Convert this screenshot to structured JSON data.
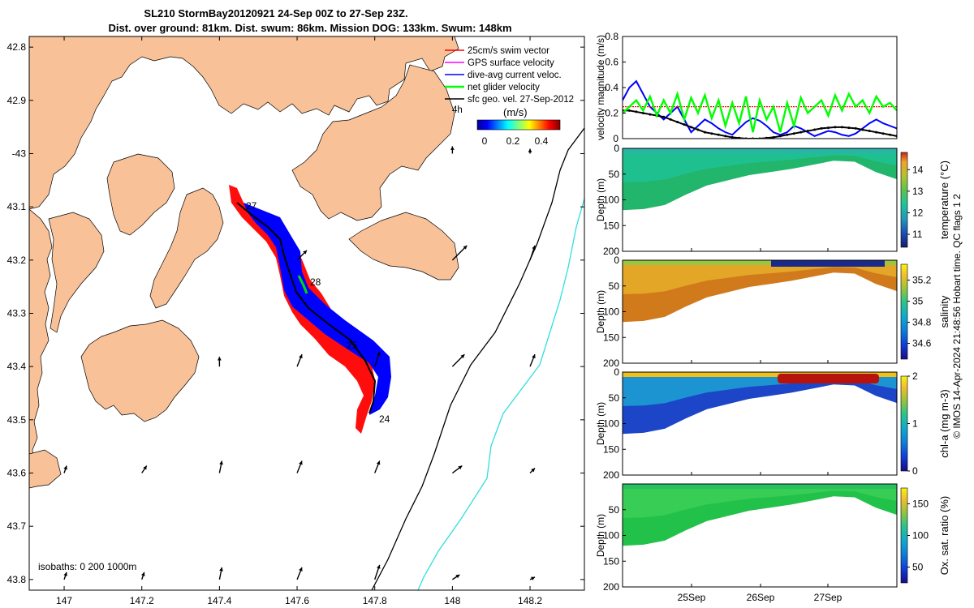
{
  "chart_data": [
    {
      "type": "map",
      "title_line1": "SL210 StormBay20120921 24-Sep 00Z to 27-Sep 23Z.",
      "title_line2": "Dist. over ground: 81km. Dist. swum: 86km. Mission DOG: 133km. Swum: 148km",
      "lon_ticks": [
        "147",
        "147.2",
        "147.4",
        "147.6",
        "147.8",
        "148",
        "148.2"
      ],
      "lat_ticks": [
        "42.8",
        "42.9",
        "-43",
        "43.1",
        "43.2",
        "43.3",
        "43.4",
        "43.5",
        "43.6",
        "43.7",
        "43.8"
      ],
      "xlim": [
        146.91,
        148.34
      ],
      "ylim": [
        -43.82,
        -42.78
      ],
      "legend": [
        {
          "label": "25cm/s swim vector",
          "color": "#ff0000"
        },
        {
          "label": "GPS surface velocity",
          "color": "#ff00ff"
        },
        {
          "label": "dive-avg current veloc.",
          "color": "#0000ff"
        },
        {
          "label": "net glider velocity",
          "color": "#00ff00"
        },
        {
          "label": "sfc geo. vel. 27-Sep-2012",
          "color": "#000000"
        }
      ],
      "legend_extra": "4h",
      "colorbar": {
        "unit_label": "(m/s)",
        "ticks": [
          "0",
          "0.2",
          "0.4"
        ],
        "range": [
          0,
          0.45
        ]
      },
      "isobath_label": "isobaths: 0   200  1000m",
      "isobath_colors": {
        "200m": "#000000",
        "1000m": "#33dddd"
      },
      "land_color": "#f8c197",
      "track_day_labels": [
        "27",
        "28",
        "25",
        "24"
      ],
      "glider_track": [
        [
          147.46,
          -43.115
        ],
        [
          147.49,
          -43.13
        ],
        [
          147.52,
          -43.15
        ],
        [
          147.555,
          -43.175
        ],
        [
          147.57,
          -43.215
        ],
        [
          147.58,
          -43.26
        ],
        [
          147.6,
          -43.3
        ],
        [
          147.66,
          -43.34
        ],
        [
          147.74,
          -43.38
        ],
        [
          147.78,
          -43.41
        ],
        [
          147.8,
          -43.45
        ],
        [
          147.79,
          -43.485
        ],
        [
          147.77,
          -43.5
        ]
      ],
      "current_arrows": [
        {
          "lon": 147.6,
          "lat": -43.2,
          "u": 0.2,
          "v": 0.2
        },
        {
          "lon": 148.0,
          "lat": -43.2,
          "u": 0.3,
          "v": 0.3
        },
        {
          "lon": 148.2,
          "lat": -43.2,
          "u": 0.1,
          "v": 0.3
        },
        {
          "lon": 147.4,
          "lat": -43.4,
          "u": 0.0,
          "v": 0.2
        },
        {
          "lon": 147.6,
          "lat": -43.4,
          "u": 0.1,
          "v": 0.25
        },
        {
          "lon": 147.8,
          "lat": -43.4,
          "u": 0.1,
          "v": 0.3
        },
        {
          "lon": 148.0,
          "lat": -43.4,
          "u": 0.25,
          "v": 0.25
        },
        {
          "lon": 148.2,
          "lat": -43.4,
          "u": 0.1,
          "v": 0.25
        },
        {
          "lon": 147.0,
          "lat": -43.6,
          "u": 0.05,
          "v": 0.15
        },
        {
          "lon": 147.2,
          "lat": -43.6,
          "u": 0.1,
          "v": 0.15
        },
        {
          "lon": 147.4,
          "lat": -43.6,
          "u": 0.05,
          "v": 0.25
        },
        {
          "lon": 147.6,
          "lat": -43.6,
          "u": 0.1,
          "v": 0.25
        },
        {
          "lon": 147.8,
          "lat": -43.6,
          "u": 0.1,
          "v": 0.25
        },
        {
          "lon": 148.0,
          "lat": -43.6,
          "u": 0.2,
          "v": 0.15
        },
        {
          "lon": 148.2,
          "lat": -43.6,
          "u": 0.1,
          "v": 0.1
        },
        {
          "lon": 147.0,
          "lat": -43.8,
          "u": 0.05,
          "v": 0.15
        },
        {
          "lon": 147.2,
          "lat": -43.8,
          "u": 0.05,
          "v": 0.15
        },
        {
          "lon": 147.4,
          "lat": -43.8,
          "u": 0.05,
          "v": 0.25
        },
        {
          "lon": 147.6,
          "lat": -43.8,
          "u": 0.1,
          "v": 0.25
        },
        {
          "lon": 147.8,
          "lat": -43.8,
          "u": 0.1,
          "v": 0.3
        },
        {
          "lon": 148.0,
          "lat": -43.8,
          "u": 0.15,
          "v": 0.1
        },
        {
          "lon": 148.2,
          "lat": -43.8,
          "u": 0.1,
          "v": 0.05
        },
        {
          "lon": 148.0,
          "lat": -43.0,
          "u": 0.0,
          "v": 0.15
        },
        {
          "lon": 148.2,
          "lat": -43.0,
          "u": 0.0,
          "v": 0.1
        }
      ]
    },
    {
      "type": "line",
      "ylabel": "velocity magnitude (m/s)",
      "ylim": [
        0,
        0.8
      ],
      "yticks": [
        "0",
        "0.2",
        "0.4",
        "0.6",
        "0.8"
      ],
      "x": [
        0,
        0.1,
        0.2,
        0.3,
        0.4,
        0.5,
        0.6,
        0.7,
        0.8,
        0.9,
        1.0,
        1.1,
        1.2,
        1.3,
        1.4,
        1.5,
        1.6,
        1.7,
        1.8,
        1.9,
        2.0,
        2.1,
        2.2,
        2.3,
        2.4,
        2.5,
        2.6,
        2.7,
        2.8,
        2.9,
        3.0,
        3.1,
        3.2,
        3.3,
        3.4,
        3.5,
        3.6,
        3.7,
        3.8,
        3.9,
        4.0
      ],
      "series": [
        {
          "name": "dive-avg current veloc.",
          "color": "#0000ff",
          "values": [
            0.3,
            0.4,
            0.45,
            0.35,
            0.25,
            0.2,
            0.15,
            0.2,
            0.25,
            0.15,
            0.05,
            0.1,
            0.15,
            0.12,
            0.08,
            0.05,
            0.03,
            0.08,
            0.13,
            0.16,
            0.14,
            0.1,
            0.05,
            0.03,
            0.05,
            0.1,
            0.08,
            0.05,
            0.02,
            0.04,
            0.06,
            0.05,
            0.03,
            0.02,
            0.04,
            0.08,
            0.12,
            0.15,
            0.12,
            0.1,
            0.08
          ]
        },
        {
          "name": "25cm/s swim vector",
          "color": "#ff0000",
          "values": [
            0.25,
            0.25,
            0.25,
            0.25,
            0.25,
            0.25,
            0.25,
            0.25,
            0.25,
            0.25,
            0.25,
            0.25,
            0.25,
            0.25,
            0.25,
            0.25,
            0.25,
            0.25,
            0.25,
            0.25,
            0.25,
            0.25,
            0.25,
            0.25,
            0.25,
            0.25,
            0.25,
            0.25,
            0.25,
            0.25,
            0.25,
            0.25,
            0.25,
            0.25,
            0.25,
            0.25,
            0.25,
            0.25,
            0.25,
            0.25,
            0.25
          ]
        },
        {
          "name": "sfc geo. vel.",
          "color": "#000000",
          "values": [
            0.22,
            0.22,
            0.21,
            0.2,
            0.19,
            0.18,
            0.17,
            0.15,
            0.13,
            0.11,
            0.09,
            0.07,
            0.05,
            0.04,
            0.03,
            0.02,
            0.01,
            0.005,
            0.0,
            0.0,
            0.0,
            0.005,
            0.01,
            0.02,
            0.03,
            0.04,
            0.05,
            0.06,
            0.07,
            0.08,
            0.085,
            0.09,
            0.09,
            0.085,
            0.08,
            0.07,
            0.06,
            0.05,
            0.04,
            0.03,
            0.02
          ]
        },
        {
          "name": "net glider velocity",
          "color": "#00ff00",
          "values": [
            0.2,
            0.25,
            0.3,
            0.22,
            0.33,
            0.18,
            0.3,
            0.2,
            0.35,
            0.15,
            0.32,
            0.2,
            0.34,
            0.16,
            0.3,
            0.1,
            0.28,
            0.12,
            0.33,
            0.05,
            0.3,
            0.15,
            0.25,
            0.05,
            0.28,
            0.1,
            0.32,
            0.2,
            0.25,
            0.3,
            0.18,
            0.34,
            0.22,
            0.35,
            0.25,
            0.3,
            0.2,
            0.33,
            0.25,
            0.28,
            0.22
          ]
        }
      ]
    },
    {
      "type": "heatmap",
      "ylabel": "Depth (m)",
      "cblabel": "temperature (°C)",
      "ylim": [
        0,
        200
      ],
      "yticks": [
        "0",
        "50",
        "100",
        "150",
        "200"
      ],
      "cbticks": [
        "11",
        "12",
        "13",
        "14"
      ],
      "cbrange": [
        10.4,
        14.8
      ]
    },
    {
      "type": "heatmap",
      "ylabel": "Depth (m)",
      "cblabel": "salinity",
      "ylim": [
        0,
        200
      ],
      "yticks": [
        "0",
        "50",
        "100",
        "150",
        "200"
      ],
      "cbticks": [
        "34.6",
        "34.8",
        "35",
        "35.2"
      ],
      "cbrange": [
        34.45,
        35.35
      ]
    },
    {
      "type": "heatmap",
      "ylabel": "Depth (m)",
      "cblabel": "chl-a (mg m-3)",
      "ylim": [
        0,
        200
      ],
      "yticks": [
        "0",
        "50",
        "100",
        "150",
        "200"
      ],
      "cbticks": [
        "0",
        "1",
        "2"
      ],
      "cbrange": [
        0,
        2
      ]
    },
    {
      "type": "heatmap",
      "ylabel": "Depth (m)",
      "cblabel": "Ox. sat. ratio (%)",
      "ylim": [
        0,
        200
      ],
      "yticks": [
        "50",
        "100",
        "150",
        "200"
      ],
      "cbticks": [
        "50",
        "100",
        "150"
      ],
      "cbrange": [
        25,
        175
      ],
      "xticks": [
        "25Sep",
        "26Sep",
        "27Sep"
      ]
    }
  ],
  "side_note": "© IMOS 14-Apr-2024 21:48:56 Hobart time. QC flags 1  2",
  "section_profile_depths": [
    120,
    118,
    110,
    90,
    72,
    62,
    52,
    46,
    40,
    32,
    24,
    26,
    46,
    60
  ]
}
